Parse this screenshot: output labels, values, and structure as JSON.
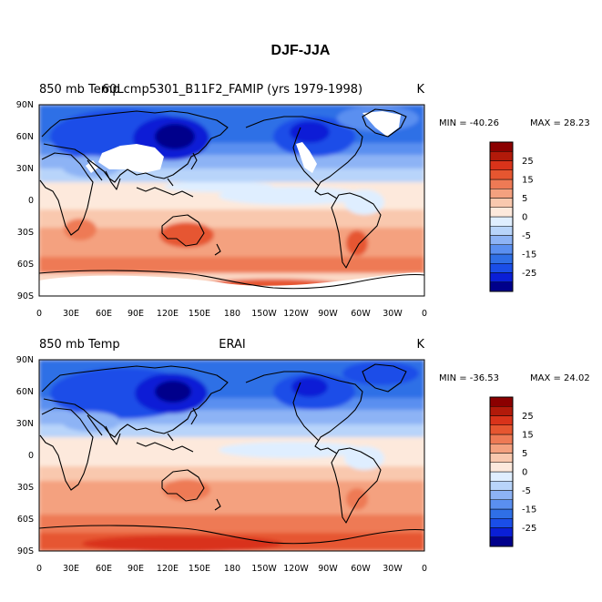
{
  "title": "DJF-JJA",
  "colorbar": {
    "colors": [
      "#00008b",
      "#0a1fd6",
      "#1a4ee8",
      "#2f6fe6",
      "#5a8ff0",
      "#8db3f5",
      "#b8d4fa",
      "#dfeeff",
      "#fde9dc",
      "#f9c8ae",
      "#f4a17f",
      "#ee7a55",
      "#e65630",
      "#d9331a",
      "#b21a0a",
      "#8b0000"
    ],
    "labels": [
      "-25",
      "-15",
      "-5",
      "0",
      "5",
      "15",
      "25"
    ]
  },
  "panels": [
    {
      "id": "model",
      "left_title": "850 mb Temp",
      "center_title": "60Lcmp5301_B11F2_FAMIP (yrs 1979-1998)",
      "units": "K",
      "min_label": "MIN = -40.26",
      "max_label": "MAX =  28.23",
      "missing_over_high_terrain": true
    },
    {
      "id": "obs",
      "left_title": "850 mb Temp",
      "center_title": "ERAI",
      "units": "K",
      "min_label": "MIN = -36.53",
      "max_label": "MAX =  24.02",
      "missing_over_high_terrain": false
    }
  ],
  "axes": {
    "lat_labels": [
      "90N",
      "60N",
      "30N",
      "0",
      "30S",
      "60S",
      "90S"
    ],
    "lon_labels": [
      "0",
      "30E",
      "60E",
      "90E",
      "120E",
      "150E",
      "180",
      "150W",
      "120W",
      "90W",
      "60W",
      "30W",
      "0"
    ]
  }
}
